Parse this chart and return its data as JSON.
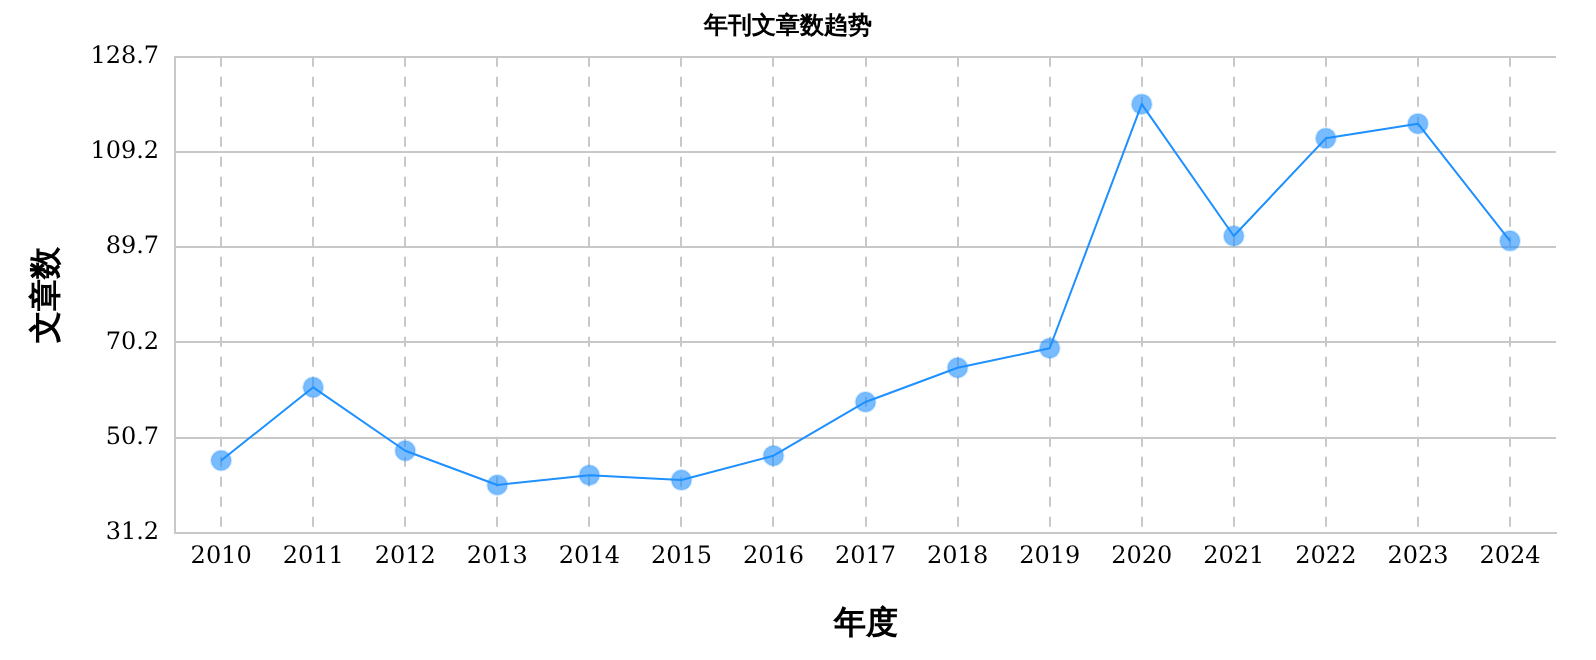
{
  "chart_data": {
    "type": "line",
    "title": "年刊文章数趋势",
    "xlabel": "年度",
    "ylabel": "文章数",
    "categories": [
      "2010",
      "2011",
      "2012",
      "2013",
      "2014",
      "2015",
      "2016",
      "2017",
      "2018",
      "2019",
      "2020",
      "2021",
      "2022",
      "2023",
      "2024"
    ],
    "series": [
      {
        "color": "#1e90ff",
        "values": [
          46,
          61,
          48,
          41,
          43,
          42,
          47,
          58,
          65,
          69,
          119,
          92,
          112,
          115,
          91
        ]
      }
    ],
    "ylim": [
      31.2,
      128.7
    ],
    "yticks": [
      31.2,
      50.7,
      70.2,
      89.7,
      109.2,
      128.7
    ],
    "grid": true,
    "legend": false,
    "marker": "circle",
    "line_style": "solid"
  }
}
